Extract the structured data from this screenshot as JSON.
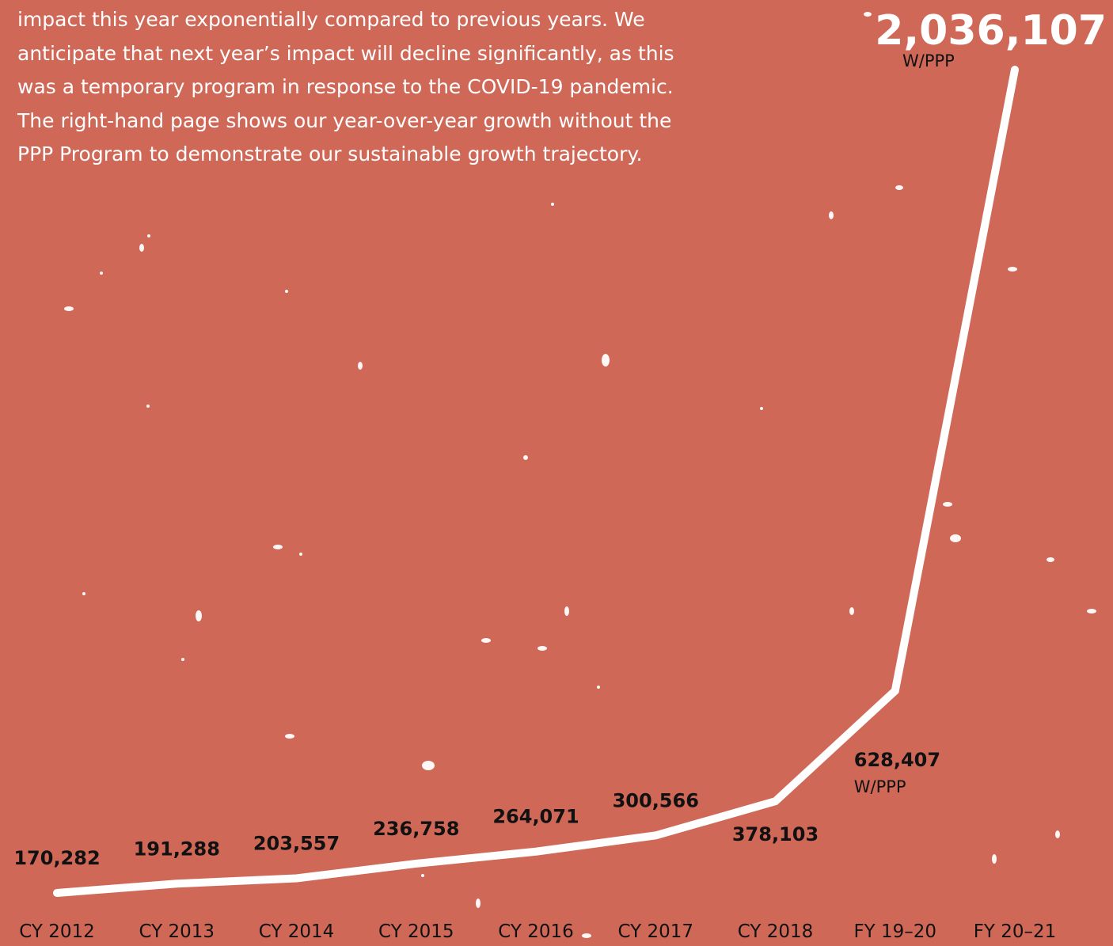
{
  "intro_text": "impact this year exponentially compared to previous years. We anticipate that next year’s impact will decline significantly, as this was a temporary program in response to the COVID-19 pandemic. The right-hand page shows our year-over-year growth without the PPP Program to demonstrate our sustainable growth trajectory.",
  "colors": {
    "background": "#d06858",
    "line": "#ffffff",
    "label": "#111111",
    "highlight_label": "#ffffff"
  },
  "chart_data": {
    "type": "line",
    "title": "",
    "xlabel": "",
    "ylabel": "",
    "grid": false,
    "categories": [
      "CY 2012",
      "CY 2013",
      "CY 2014",
      "CY 2015",
      "CY 2016",
      "CY 2017",
      "CY 2018",
      "FY 19–20",
      "FY 20–21"
    ],
    "values": [
      170282,
      191288,
      203557,
      236758,
      264071,
      300566,
      378103,
      628407,
      2036107
    ],
    "labels": [
      "170,282",
      "191,288",
      "203,557",
      "236,758",
      "264,071",
      "300,566",
      "378,103",
      "628,407",
      "2,036,107"
    ],
    "notes": [
      "",
      "",
      "",
      "",
      "",
      "",
      "",
      "W/PPP",
      "W/PPP"
    ]
  }
}
